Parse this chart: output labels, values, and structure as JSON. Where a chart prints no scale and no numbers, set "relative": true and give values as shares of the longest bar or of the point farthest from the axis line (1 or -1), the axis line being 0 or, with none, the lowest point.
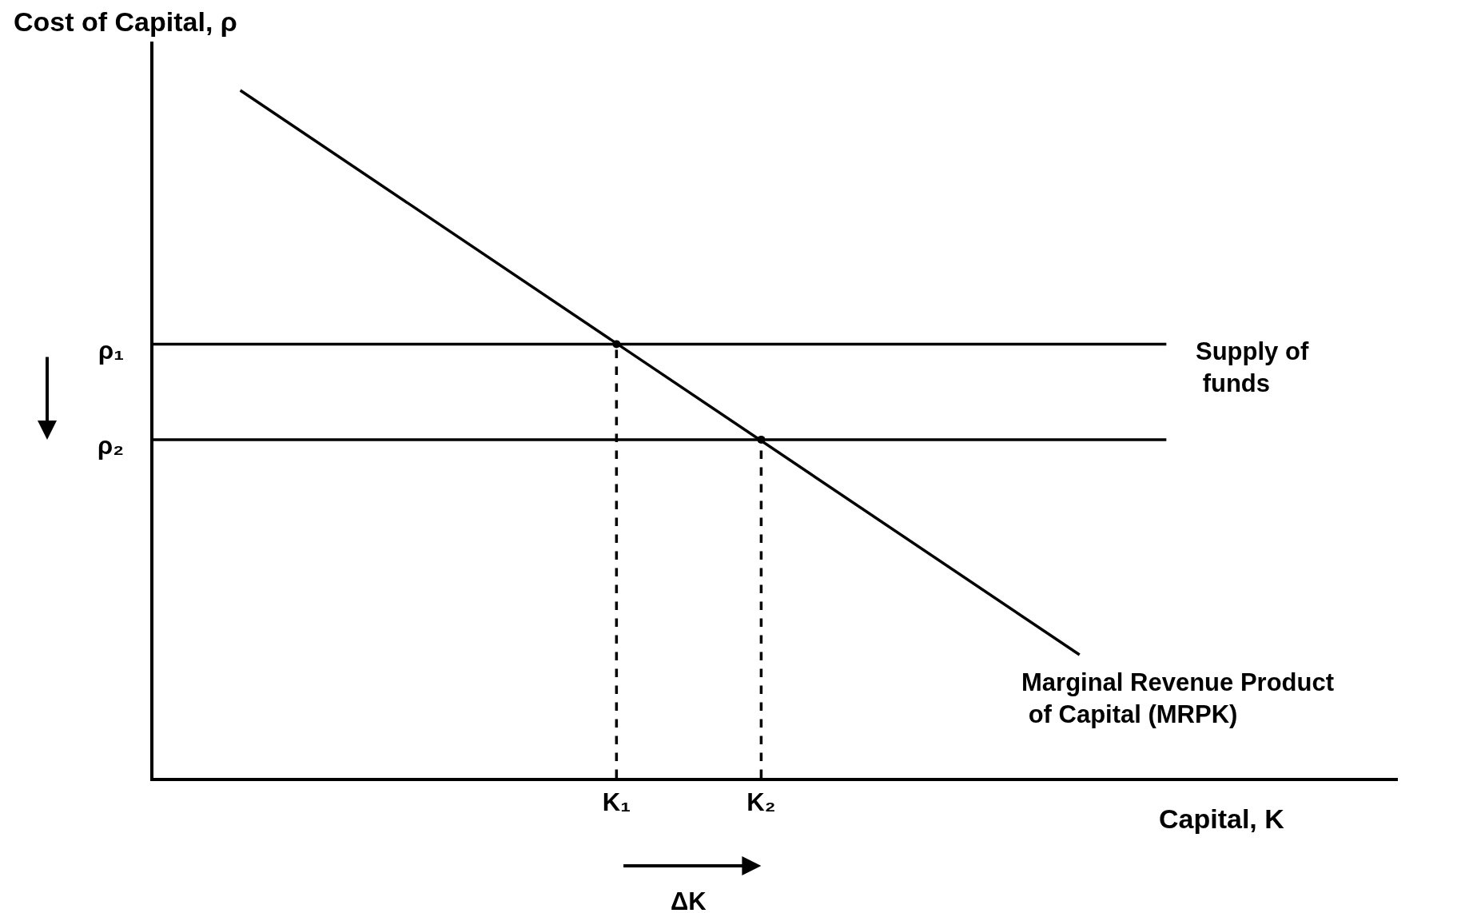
{
  "chart_data": {
    "type": "line",
    "relative": true,
    "xlabel": "Capital, K",
    "ylabel": "Cost of Capital, ρ",
    "categories": [
      null,
      null,
      null,
      null,
      null,
      null,
      null,
      null,
      null,
      null,
      null,
      null,
      null,
      null,
      null,
      null,
      "K₁",
      null,
      null,
      null,
      null,
      "K₂",
      null,
      null,
      null,
      null,
      null,
      null,
      null,
      null,
      null,
      null,
      null,
      null,
      null,
      null,
      null,
      null,
      null,
      null,
      null,
      null,
      null,
      null
    ],
    "series": [
      {
        "name": "Marginal Revenue Product of Capital (MRPK)",
        "color": "#000000",
        "values": [
          null,
          null,
          null,
          1,
          null,
          null,
          null,
          null,
          null,
          null,
          null,
          null,
          null,
          null,
          null,
          null,
          null,
          null,
          null,
          null,
          null,
          null,
          null,
          null,
          null,
          null,
          null,
          null,
          null,
          null,
          null,
          null,
          0.179,
          null,
          null,
          null,
          null,
          null,
          null,
          null,
          null,
          null,
          null,
          null
        ]
      },
      {
        "name": "Supply of funds",
        "color": "#000000",
        "values": [
          0.631,
          null,
          null,
          null,
          null,
          null,
          null,
          null,
          null,
          null,
          null,
          null,
          null,
          null,
          null,
          null,
          null,
          null,
          null,
          null,
          null,
          null,
          null,
          null,
          null,
          null,
          null,
          null,
          null,
          null,
          null,
          null,
          null,
          null,
          null,
          0.631,
          null,
          null,
          null,
          null,
          null,
          null,
          null,
          null
        ]
      },
      {
        "color": "#000000",
        "values": [
          0.492,
          null,
          null,
          null,
          null,
          null,
          null,
          null,
          null,
          null,
          null,
          null,
          null,
          null,
          null,
          null,
          null,
          null,
          null,
          null,
          null,
          null,
          null,
          null,
          null,
          null,
          null,
          null,
          null,
          null,
          null,
          null,
          null,
          null,
          null,
          0.492,
          null,
          null,
          null,
          null,
          null,
          null,
          null,
          null
        ]
      },
      {
        "type": "lollipop",
        "color": "#000000",
        "line_style": "dashed",
        "marker": "circle",
        "values": [
          null,
          null,
          null,
          null,
          null,
          null,
          null,
          null,
          null,
          null,
          null,
          null,
          null,
          null,
          null,
          null,
          0.631,
          null,
          null,
          null,
          null,
          0.492,
          null,
          null,
          null,
          null,
          null,
          null,
          null,
          null,
          null,
          null,
          null,
          null,
          null,
          null,
          null,
          null,
          null,
          null,
          null,
          null,
          null,
          null
        ]
      }
    ],
    "annotations": [
      "ρ₁",
      "ρ₂",
      "ΔK"
    ],
    "legend": false,
    "marker": "none",
    "line_style": "solid"
  }
}
